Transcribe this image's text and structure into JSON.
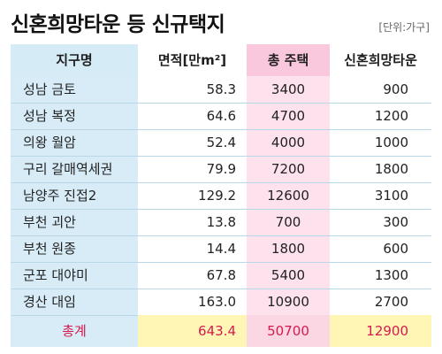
{
  "title": "신혼희망타운 등 신규택지",
  "unit": "[단위:가구]",
  "headers": {
    "district": "지구명",
    "area": "면적[만m²]",
    "total_housing": "총 주택",
    "newlywed": "신혼희망타운"
  },
  "rows": [
    {
      "name": "성남 금토",
      "area": "58.3",
      "houses": "3400",
      "hope": "900"
    },
    {
      "name": "성남 복정",
      "area": "64.6",
      "houses": "4700",
      "hope": "1200"
    },
    {
      "name": "의왕 월암",
      "area": "52.4",
      "houses": "4000",
      "hope": "1000"
    },
    {
      "name": "구리 갈매역세권",
      "area": "79.9",
      "houses": "7200",
      "hope": "1800"
    },
    {
      "name": "남양주 진접2",
      "area": "129.2",
      "houses": "12600",
      "hope": "3100"
    },
    {
      "name": "부천 괴안",
      "area": "13.8",
      "houses": "700",
      "hope": "300"
    },
    {
      "name": "부천 원종",
      "area": "14.4",
      "houses": "1800",
      "hope": "600"
    },
    {
      "name": "군포 대야미",
      "area": "67.8",
      "houses": "5400",
      "hope": "1300"
    },
    {
      "name": "경산 대임",
      "area": "163.0",
      "houses": "10900",
      "hope": "2700"
    }
  ],
  "total": {
    "name": "총계",
    "area": "643.4",
    "houses": "50700",
    "hope": "12900"
  },
  "colors": {
    "header_blue": "#d5ebf6",
    "name_col_blue": "#d8ecf7",
    "houses_col_pink": "#fde1ec",
    "total_yellow": "#fff5b5",
    "total_text_red": "#d71a4e"
  }
}
